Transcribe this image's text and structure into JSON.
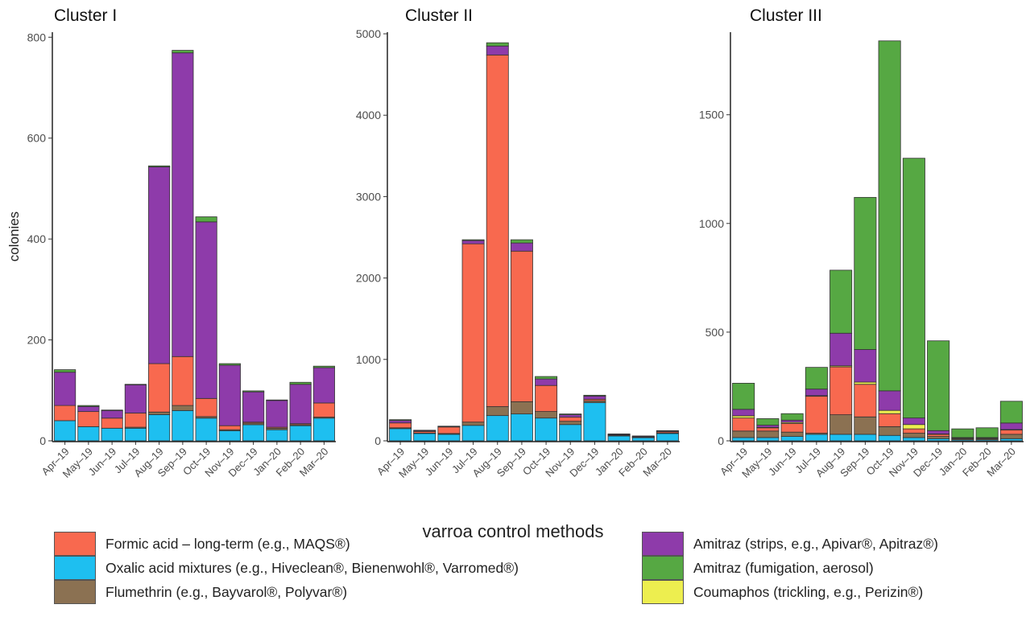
{
  "ylabel": "colonies",
  "legend": {
    "title": "varroa control methods",
    "items": [
      {
        "key": "formic",
        "label": "Formic acid – long-term (e.g., MAQS®)",
        "color": "#F8694F"
      },
      {
        "key": "oxalic",
        "label": "Oxalic acid mixtures (e.g., Hiveclean®, Bienenwohl®, Varromed®)",
        "color": "#1EBFF0"
      },
      {
        "key": "flumethrin",
        "label": "Flumethrin (e.g., Bayvarol®, Polyvar®)",
        "color": "#8B7152"
      },
      {
        "key": "amitraz_strips",
        "label": "Amitraz (strips, e.g., Apivar®, Apitraz®)",
        "color": "#8E3BAA"
      },
      {
        "key": "amitraz_fum",
        "label": "Amitraz (fumigation, aerosol)",
        "color": "#56A843"
      },
      {
        "key": "coumaphos",
        "label": "Coumaphos (trickling, e.g., Perizin®)",
        "color": "#EDEE4F"
      }
    ]
  },
  "chart_data": [
    {
      "type": "bar",
      "title": "Cluster I",
      "ylim": [
        0,
        810
      ],
      "yticks": [
        0,
        200,
        400,
        600,
        800
      ],
      "categories": [
        "Apr–19",
        "May–19",
        "Jun–19",
        "Jul–19",
        "Aug–19",
        "Sep–19",
        "Oct–19",
        "Nov–19",
        "Dec–19",
        "Jan–20",
        "Feb–20",
        "Mar–20"
      ],
      "series": [
        {
          "key": "oxalic",
          "name": "Oxalic acid mixtures (e.g., Hiveclean®, Bienenwohl®, Varromed®)",
          "values": [
            40,
            28,
            25,
            25,
            52,
            60,
            45,
            20,
            32,
            22,
            30,
            45
          ]
        },
        {
          "key": "flumethrin",
          "name": "Flumethrin (e.g., Bayvarol®, Polyvar®)",
          "values": [
            0,
            0,
            0,
            2,
            5,
            10,
            3,
            2,
            3,
            3,
            2,
            2
          ]
        },
        {
          "key": "formic",
          "name": "Formic acid – long-term (e.g., MAQS®)",
          "values": [
            30,
            30,
            20,
            28,
            96,
            97,
            36,
            8,
            2,
            2,
            2,
            28
          ]
        },
        {
          "key": "amitraz_strips",
          "name": "Amitraz (strips, e.g., Apivar®, Apitraz®)",
          "values": [
            66,
            10,
            15,
            56,
            390,
            602,
            350,
            120,
            60,
            53,
            78,
            70
          ]
        },
        {
          "key": "amitraz_fum",
          "name": "Amitraz (fumigation, aerosol)",
          "values": [
            5,
            2,
            1,
            1,
            2,
            5,
            10,
            3,
            2,
            1,
            4,
            3
          ]
        },
        {
          "key": "coumaphos",
          "name": "Coumaphos (trickling, e.g., Perizin®)",
          "values": [
            0,
            0,
            0,
            0,
            0,
            0,
            0,
            0,
            0,
            0,
            0,
            0
          ]
        }
      ]
    },
    {
      "type": "bar",
      "title": "Cluster II",
      "ylim": [
        0,
        5020
      ],
      "yticks": [
        0,
        1000,
        2000,
        3000,
        4000,
        5000
      ],
      "categories": [
        "Apr–19",
        "May–19",
        "Jun–19",
        "Jul–19",
        "Aug–19",
        "Sep–19",
        "Oct–19",
        "Nov–19",
        "Dec–19",
        "Jan–20",
        "Feb–20",
        "Mar–20"
      ],
      "series": [
        {
          "key": "oxalic",
          "name": "Oxalic acid mixtures (e.g., Hiveclean®, Bienenwohl®, Varromed®)",
          "values": [
            150,
            90,
            80,
            190,
            310,
            330,
            280,
            200,
            470,
            60,
            40,
            90
          ]
        },
        {
          "key": "flumethrin",
          "name": "Flumethrin (e.g., Bayvarol®, Polyvar®)",
          "values": [
            10,
            5,
            10,
            40,
            110,
            150,
            80,
            40,
            20,
            5,
            3,
            5
          ]
        },
        {
          "key": "formic",
          "name": "Formic acid – long-term (e.g., MAQS®)",
          "values": [
            60,
            20,
            80,
            2190,
            4320,
            1850,
            320,
            50,
            20,
            5,
            2,
            15
          ]
        },
        {
          "key": "amitraz_strips",
          "name": "Amitraz (strips, e.g., Apivar®, Apitraz®)",
          "values": [
            30,
            10,
            8,
            40,
            110,
            100,
            80,
            30,
            40,
            10,
            10,
            10
          ]
        },
        {
          "key": "amitraz_fum",
          "name": "Amitraz (fumigation, aerosol)",
          "values": [
            10,
            5,
            2,
            10,
            40,
            40,
            30,
            10,
            10,
            5,
            5,
            5
          ]
        },
        {
          "key": "coumaphos",
          "name": "Coumaphos (trickling, e.g., Perizin®)",
          "values": [
            0,
            0,
            0,
            0,
            0,
            0,
            0,
            0,
            0,
            0,
            0,
            0
          ]
        }
      ]
    },
    {
      "type": "bar",
      "title": "Cluster III",
      "ylim": [
        0,
        1880
      ],
      "yticks": [
        0,
        500,
        1000,
        1500
      ],
      "categories": [
        "Apr–19",
        "May–19",
        "Jun–19",
        "Jul–19",
        "Aug–19",
        "Sep–19",
        "Oct–19",
        "Nov–19",
        "Dec–19",
        "Jan–20",
        "Feb–20",
        "Mar–20"
      ],
      "series": [
        {
          "key": "oxalic",
          "name": "Oxalic acid mixtures (e.g., Hiveclean®, Bienenwohl®, Varromed®)",
          "values": [
            15,
            15,
            20,
            30,
            30,
            30,
            25,
            15,
            10,
            5,
            5,
            10
          ]
        },
        {
          "key": "flumethrin",
          "name": "Flumethrin (e.g., Bayvarol®, Polyvar®)",
          "values": [
            30,
            30,
            20,
            5,
            90,
            80,
            40,
            20,
            10,
            5,
            5,
            20
          ]
        },
        {
          "key": "formic",
          "name": "Formic acid – long-term (e.g., MAQS®)",
          "values": [
            60,
            15,
            40,
            170,
            220,
            150,
            60,
            20,
            10,
            2,
            2,
            20
          ]
        },
        {
          "key": "coumaphos",
          "name": "Coumaphos (trickling, e.g., Perizin®)",
          "values": [
            10,
            2,
            5,
            3,
            5,
            10,
            15,
            20,
            2,
            0,
            0,
            2
          ]
        },
        {
          "key": "amitraz_strips",
          "name": "Amitraz (strips, e.g., Apivar®, Apitraz®)",
          "values": [
            30,
            10,
            10,
            30,
            150,
            150,
            90,
            30,
            15,
            3,
            3,
            30
          ]
        },
        {
          "key": "amitraz_fum",
          "name": "Amitraz (fumigation, aerosol)",
          "values": [
            120,
            30,
            30,
            100,
            290,
            700,
            1610,
            1195,
            413,
            40,
            45,
            100
          ]
        }
      ]
    }
  ]
}
